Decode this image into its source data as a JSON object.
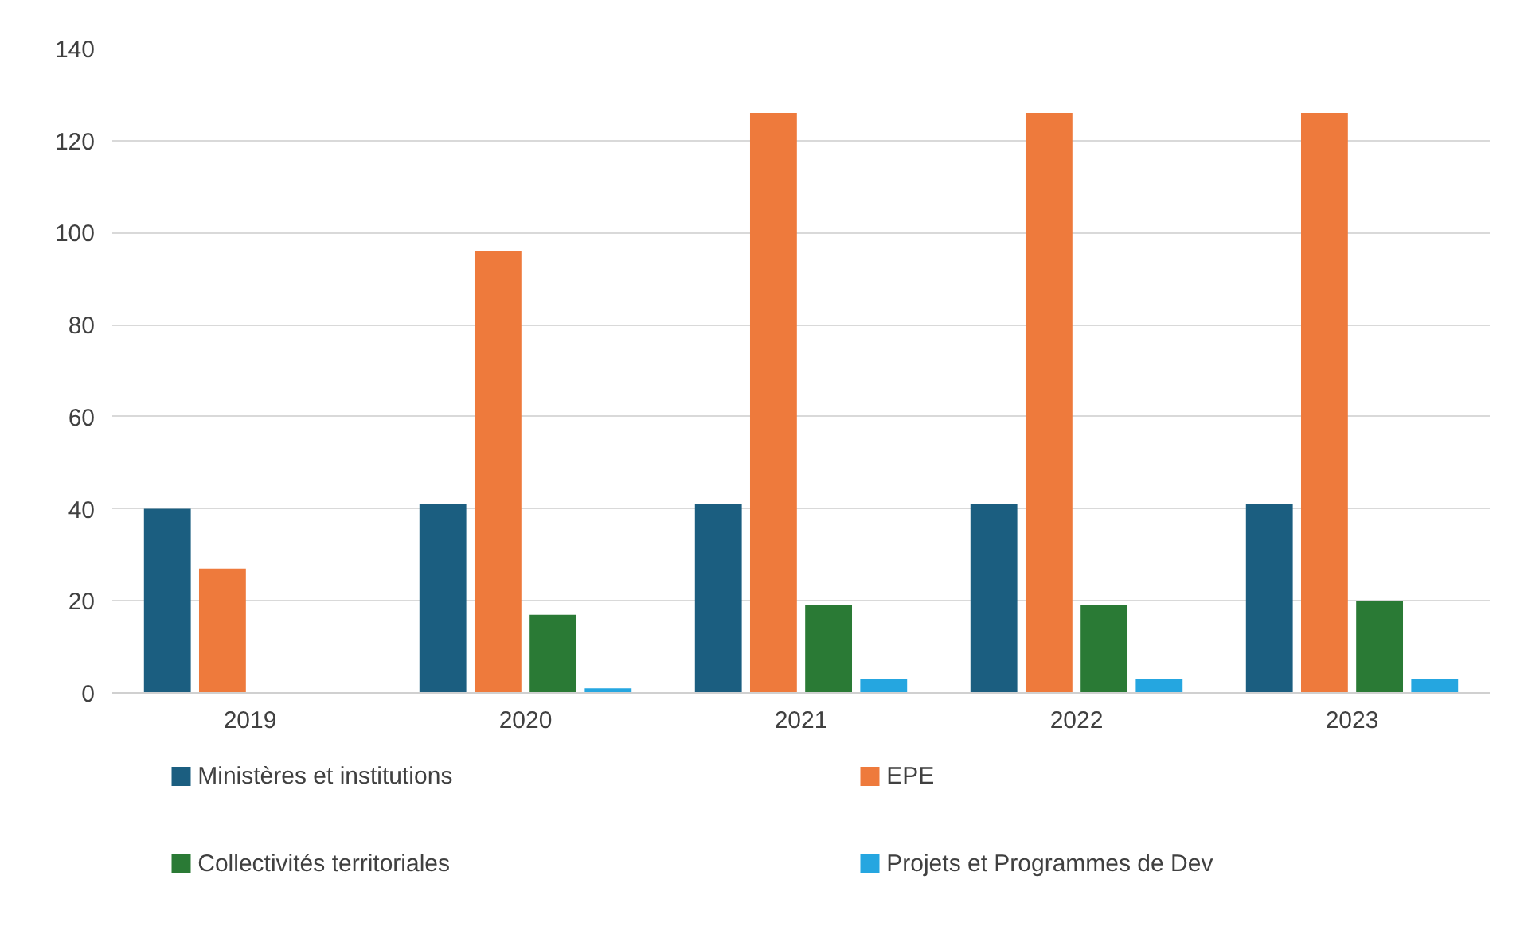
{
  "chart_data": {
    "type": "bar",
    "categories": [
      "2019",
      "2020",
      "2021",
      "2022",
      "2023"
    ],
    "series": [
      {
        "name": "Ministères et institutions",
        "color": "#1b5e80",
        "values": [
          40,
          41,
          41,
          41,
          41
        ]
      },
      {
        "name": "EPE",
        "color": "#ee7a3c",
        "values": [
          27,
          96,
          126,
          126,
          126
        ]
      },
      {
        "name": "Collectivités territoriales",
        "color": "#2a7a35",
        "values": [
          0,
          17,
          19,
          19,
          20
        ]
      },
      {
        "name": "Projets et Programmes de Dev",
        "color": "#25a6e0",
        "values": [
          0,
          1,
          3,
          3,
          3
        ]
      }
    ],
    "ylim": [
      0,
      140
    ],
    "yticks": [
      0,
      20,
      40,
      60,
      80,
      100,
      120,
      140
    ],
    "grid": "y",
    "legend": "bottom"
  }
}
